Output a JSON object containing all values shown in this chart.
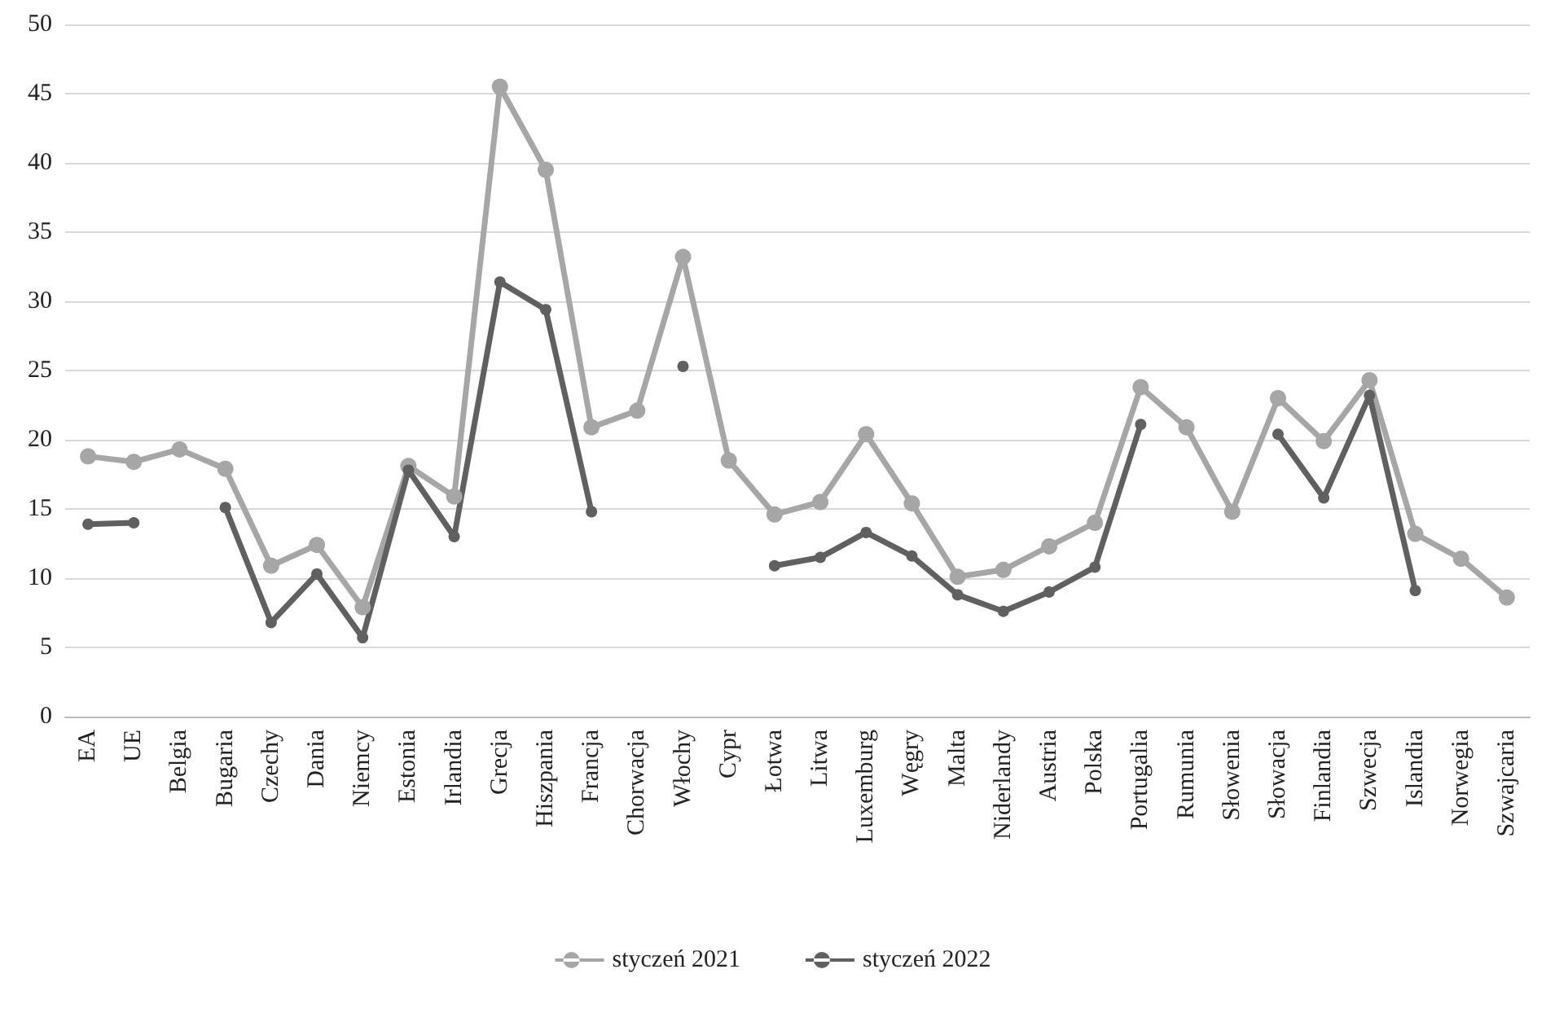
{
  "chart_data": {
    "type": "line",
    "categories": [
      "EA",
      "UE",
      "Belgia",
      "Bugaria",
      "Czechy",
      "Dania",
      "Niemcy",
      "Estonia",
      "Irlandia",
      "Grecja",
      "Hiszpania",
      "Francja",
      "Chorwacja",
      "Włochy",
      "Cypr",
      "Łotwa",
      "Litwa",
      "Luxemburg",
      "Węgry",
      "Malta",
      "Niderlandy",
      "Austria",
      "Polska",
      "Portugalia",
      "Rumunia",
      "Słowenia",
      "Słowacja",
      "Finlandia",
      "Szwecja",
      "Islandia",
      "Norwegia",
      "Szwajcaria"
    ],
    "series": [
      {
        "name": "styczeń 2021",
        "color": "#a6a6a6",
        "values": [
          18.8,
          18.4,
          19.3,
          17.9,
          10.9,
          12.4,
          7.9,
          18.1,
          15.9,
          45.5,
          39.5,
          20.9,
          22.1,
          33.2,
          18.5,
          14.6,
          15.5,
          20.4,
          15.4,
          10.1,
          10.6,
          12.3,
          14.0,
          23.8,
          20.9,
          14.8,
          23.0,
          19.9,
          24.3,
          13.2,
          11.4,
          8.6
        ]
      },
      {
        "name": "styczeń 2022",
        "color": "#606060",
        "values": [
          13.9,
          14.0,
          null,
          15.1,
          6.8,
          10.3,
          5.7,
          17.8,
          13.0,
          31.4,
          29.4,
          14.8,
          null,
          25.3,
          null,
          10.9,
          11.5,
          13.3,
          11.6,
          8.8,
          7.6,
          9.0,
          10.8,
          21.1,
          null,
          null,
          20.4,
          15.8,
          23.2,
          9.1,
          null,
          null
        ]
      }
    ],
    "ylim": [
      0,
      50
    ],
    "yticks": [
      0,
      5,
      10,
      15,
      20,
      25,
      30,
      35,
      40,
      45,
      50
    ],
    "grid": "y",
    "legend": "bottom",
    "marker": "circle",
    "line_style": "solid"
  }
}
